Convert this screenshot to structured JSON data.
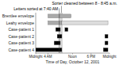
{
  "chart_data": {
    "type": "gantt",
    "orientation": "horizontal",
    "x_label": "Time of Day, October 12, 2001",
    "categories": [
      "Brentlee envelope",
      "Leahy envelope",
      "Case-patient 1",
      "Case-patient 2",
      "Case-patient 3",
      "Case-patient 4"
    ],
    "bars": [
      {
        "category": "Brentlee envelope",
        "start": 4.0,
        "end": 11.5,
        "color": "#aaaaaa"
      },
      {
        "category": "Leahy envelope",
        "start": 4.0,
        "end": 8.5,
        "color": "#aaaaaa"
      },
      {
        "category": "Leahy envelope",
        "start": 8.5,
        "end": 23.5,
        "color": "#dddddd"
      },
      {
        "category": "Case-patient 1",
        "start": 6.5,
        "end": 8.0,
        "color": "#000000"
      },
      {
        "category": "Case-patient 1",
        "start": 9.5,
        "end": 10.5,
        "color": "#000000"
      },
      {
        "category": "Case-patient 2",
        "start": 7.0,
        "end": 8.5,
        "color": "#000000"
      },
      {
        "category": "Case-patient 2",
        "start": 22.5,
        "end": 23.5,
        "color": "#000000"
      },
      {
        "category": "Case-patient 3",
        "start": 6.0,
        "end": 8.0,
        "color": "#000000"
      },
      {
        "category": "Case-patient 3",
        "start": 22.5,
        "end": 23.5,
        "color": "#000000"
      },
      {
        "category": "Case-patient 4",
        "start": 0.0,
        "end": 8.5,
        "color": "#000000"
      },
      {
        "category": "Case-patient 4",
        "start": 22.0,
        "end": 23.5,
        "color": "#000000"
      }
    ],
    "annotations": [
      {
        "text": "Letters sorted at 7:40 AM",
        "x": 7.67,
        "color": "#333333"
      },
      {
        "text": "Sorter cleaned between 8 - 8:45 a.m.",
        "x": 8.0,
        "x2": 8.75,
        "color": "#cccccc"
      }
    ],
    "xlim": [
      0,
      24
    ],
    "xticks": [
      {
        "value": 0,
        "label": "Midnight"
      },
      {
        "value": 4,
        "label": "4 AM"
      },
      {
        "value": 12,
        "label": "Noon"
      },
      {
        "value": 18,
        "label": "6 PM"
      },
      {
        "value": 24,
        "label": "Midnight"
      }
    ]
  }
}
